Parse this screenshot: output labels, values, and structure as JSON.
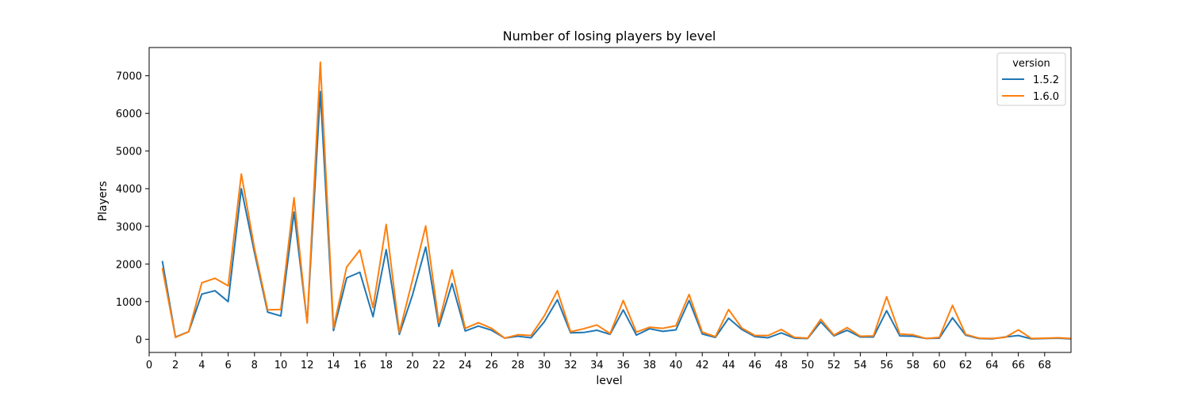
{
  "chart_data": {
    "type": "line",
    "title": "Number of losing players by level",
    "xlabel": "level",
    "ylabel": "Players",
    "xlim": [
      0,
      70
    ],
    "ylim": [
      -350,
      7750
    ],
    "xticks": [
      0,
      2,
      4,
      6,
      8,
      10,
      12,
      14,
      16,
      18,
      20,
      22,
      24,
      26,
      28,
      30,
      32,
      34,
      36,
      38,
      40,
      42,
      44,
      46,
      48,
      50,
      52,
      54,
      56,
      58,
      60,
      62,
      64,
      66,
      68
    ],
    "yticks": [
      0,
      1000,
      2000,
      3000,
      4000,
      5000,
      6000,
      7000
    ],
    "grid": false,
    "legend": {
      "title": "version",
      "position": "top-right"
    },
    "x": [
      1,
      2,
      3,
      4,
      5,
      6,
      7,
      8,
      9,
      10,
      11,
      12,
      13,
      14,
      15,
      16,
      17,
      18,
      19,
      20,
      21,
      22,
      23,
      24,
      25,
      26,
      27,
      28,
      29,
      30,
      31,
      32,
      33,
      34,
      35,
      36,
      37,
      38,
      39,
      40,
      41,
      42,
      43,
      44,
      45,
      46,
      47,
      48,
      49,
      50,
      51,
      52,
      53,
      54,
      55,
      56,
      57,
      58,
      59,
      60,
      61,
      62,
      63,
      64,
      65,
      66,
      67,
      68,
      69,
      70
    ],
    "series": [
      {
        "name": "1.5.2",
        "color": "#1f77b4",
        "values": [
          2080,
          60,
          200,
          1200,
          1290,
          1000,
          4000,
          2300,
          720,
          620,
          3380,
          450,
          6580,
          230,
          1630,
          1780,
          600,
          2380,
          130,
          1180,
          2450,
          340,
          1480,
          220,
          350,
          240,
          30,
          80,
          40,
          460,
          1050,
          170,
          180,
          240,
          130,
          780,
          110,
          280,
          210,
          250,
          1030,
          140,
          50,
          560,
          260,
          70,
          40,
          170,
          30,
          20,
          460,
          90,
          240,
          60,
          60,
          760,
          90,
          80,
          20,
          30,
          570,
          110,
          20,
          10,
          60,
          100,
          10,
          20,
          30,
          10
        ]
      },
      {
        "name": "1.6.0",
        "color": "#ff7f0e",
        "values": [
          1890,
          50,
          200,
          1500,
          1620,
          1420,
          4390,
          2410,
          780,
          790,
          3760,
          430,
          7360,
          300,
          1920,
          2370,
          840,
          3050,
          180,
          1580,
          3010,
          440,
          1840,
          290,
          440,
          290,
          30,
          120,
          100,
          620,
          1290,
          200,
          280,
          380,
          150,
          1030,
          190,
          320,
          290,
          360,
          1190,
          190,
          70,
          790,
          300,
          100,
          100,
          260,
          50,
          30,
          530,
          110,
          310,
          80,
          90,
          1130,
          140,
          120,
          20,
          50,
          900,
          130,
          30,
          20,
          50,
          250,
          20,
          30,
          40,
          20
        ]
      }
    ]
  }
}
